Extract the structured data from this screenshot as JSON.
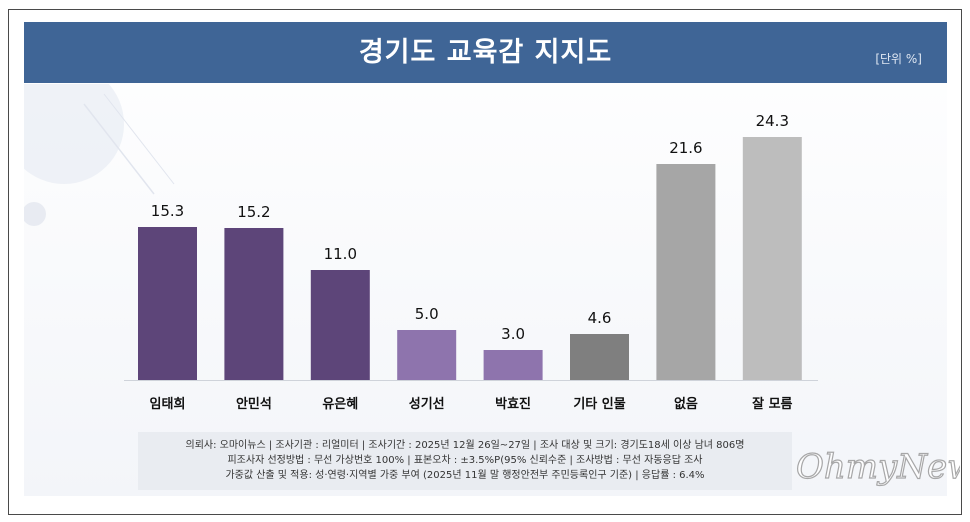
{
  "title": "경기도 교육감 지지도",
  "unit": "[단위 %]",
  "notes": [
    "의뢰사: 오마이뉴스 | 조사기관 : 리얼미터 | 조사기간 : 2025년 12월 26일~27일 | 조사 대상 및 크기: 경기도18세 이상 남녀 806명",
    "피조사자 선정방법 : 무선 가상번호 100% | 표본오차 : ±3.5%P(95% 신뢰수준 | 조사방법 : 무선 자동응답 조사",
    "가중값 산출 및 적용: 성·연령·지역별 가중 부여 (2025년 11월 말 행정안전부 주민등록인구 기준) | 응답률 : 6.4%"
  ],
  "watermark": "OhmyNews",
  "colors": {
    "header": "#3f6596",
    "dark_purple": "#5d4579",
    "light_purple": "#8e74ad",
    "dark_gray": "#7f7f7f",
    "light_gray": "#a6a6a6",
    "lighter_gray": "#bdbdbd"
  },
  "chart_data": {
    "type": "bar",
    "title": "경기도 교육감 지지도",
    "xlabel": "",
    "ylabel": "",
    "unit": "%",
    "ylim": [
      0,
      30
    ],
    "grid": false,
    "legend": "none",
    "categories": [
      "임태희",
      "안민석",
      "유은혜",
      "성기선",
      "박효진",
      "기타 인물",
      "없음",
      "잘 모름"
    ],
    "values": [
      15.3,
      15.2,
      11.0,
      5.0,
      3.0,
      4.6,
      21.6,
      24.3
    ],
    "value_labels": [
      "15.3",
      "15.2",
      "11.0",
      "5.0",
      "3.0",
      "4.6",
      "21.6",
      "24.3"
    ],
    "bar_colors": [
      "#5d4579",
      "#5d4579",
      "#5d4579",
      "#8e74ad",
      "#8e74ad",
      "#7f7f7f",
      "#a6a6a6",
      "#bdbdbd"
    ]
  }
}
